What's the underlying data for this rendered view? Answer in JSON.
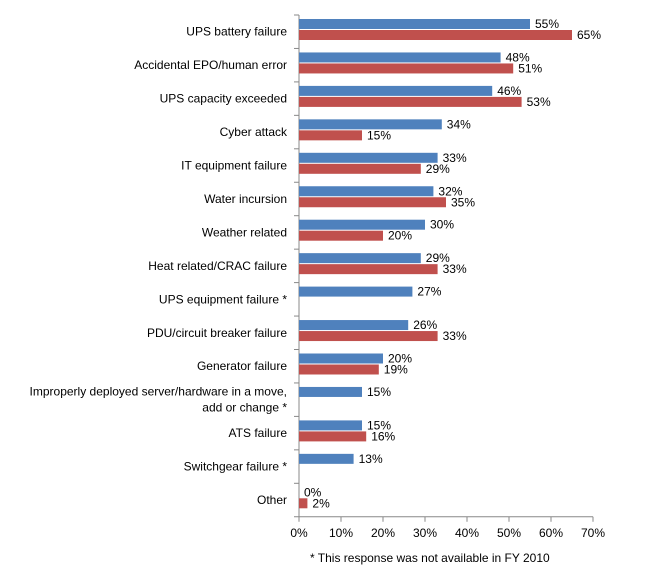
{
  "chart_data": {
    "type": "bar",
    "orientation": "horizontal",
    "categories": [
      [
        "UPS battery failure"
      ],
      [
        "Accidental EPO/human error"
      ],
      [
        "UPS capacity exceeded"
      ],
      [
        "Cyber attack"
      ],
      [
        "IT equipment failure"
      ],
      [
        "Water incursion"
      ],
      [
        "Weather related"
      ],
      [
        "Heat related/CRAC failure"
      ],
      [
        "UPS equipment failure *"
      ],
      [
        "PDU/circuit breaker failure"
      ],
      [
        "Generator failure"
      ],
      [
        "Improperly deployed server/hardware in a move,",
        "add or change *"
      ],
      [
        "ATS failure"
      ],
      [
        "Switchgear failure *"
      ],
      [
        "Other"
      ]
    ],
    "series": [
      {
        "color": "#4f81bd",
        "values": [
          55,
          48,
          46,
          34,
          33,
          32,
          30,
          29,
          27,
          26,
          20,
          15,
          15,
          13,
          0
        ],
        "labels": [
          "55%",
          "48%",
          "46%",
          "34%",
          "33%",
          "32%",
          "30%",
          "29%",
          "27%",
          "26%",
          "20%",
          "15%",
          "15%",
          "13%",
          "0%"
        ]
      },
      {
        "color": "#c0504d",
        "values": [
          65,
          51,
          53,
          15,
          29,
          35,
          20,
          33,
          null,
          33,
          19,
          null,
          16,
          null,
          2
        ],
        "labels": [
          "65%",
          "51%",
          "53%",
          "15%",
          "29%",
          "35%",
          "20%",
          "33%",
          null,
          "33%",
          "19%",
          null,
          "16%",
          null,
          "2%"
        ]
      }
    ],
    "xlim": [
      0,
      70
    ],
    "ticks": [
      "0%",
      "10%",
      "20%",
      "30%",
      "40%",
      "50%",
      "60%",
      "70%"
    ],
    "grid": false,
    "footnote": "* This response was not available in FY 2010"
  }
}
